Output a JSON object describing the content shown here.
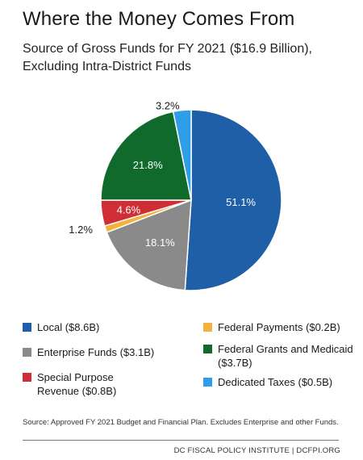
{
  "title": "Where the Money Comes From",
  "subtitle": "Source of Gross Funds for FY 2021 ($16.9 Billion), Excluding Intra-District Funds",
  "chart_data": {
    "type": "pie",
    "slices": [
      {
        "name": "Local ($8.6B)",
        "value": 51.1,
        "label": "51.1%",
        "color": "#1f5fa8"
      },
      {
        "name": "Enterprise Funds ($3.1B)",
        "value": 18.1,
        "label": "18.1%",
        "color": "#8a8a8a"
      },
      {
        "name": "Federal Payments ($0.2B)",
        "value": 1.2,
        "label": "1.2%",
        "color": "#f4b23c"
      },
      {
        "name": "Special Purpose Revenue ($0.8B)",
        "value": 4.6,
        "label": "4.6%",
        "color": "#cf2e36"
      },
      {
        "name": "Federal Grants and Medicaid ($3.7B)",
        "value": 21.8,
        "label": "21.8%",
        "color": "#0f6a2c"
      },
      {
        "name": "Dedicated Taxes ($0.5B)",
        "value": 3.2,
        "label": "3.2%",
        "color": "#2f9ee8"
      }
    ]
  },
  "legend": {
    "local": {
      "line1": "Local ($8.6B)",
      "color": "#1f5fa8"
    },
    "enterprise": {
      "line1": "Enterprise Funds ($3.1B)",
      "color": "#8a8a8a"
    },
    "special": {
      "line1": "Special Purpose",
      "line2": "Revenue ($0.8B)",
      "color": "#cf2e36"
    },
    "federal_payments": {
      "line1": "Federal Payments ($0.2B)",
      "color": "#f4b23c"
    },
    "federal_grants": {
      "line1": "Federal Grants and Medicaid",
      "line2": "($3.7B)",
      "color": "#0f6a2c"
    },
    "dedicated": {
      "line1": "Dedicated Taxes ($0.5B)",
      "color": "#2f9ee8"
    }
  },
  "source": "Source: Approved FY 2021 Budget and Financial Plan. Excludes Enterprise and other Funds.",
  "footer": "DC FISCAL POLICY INSTITUTE | DCFPI.ORG"
}
